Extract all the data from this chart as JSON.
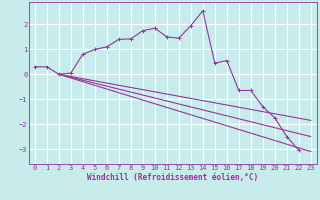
{
  "xlabel": "Windchill (Refroidissement éolien,°C)",
  "background_color": "#c8ecec",
  "line_color": "#993399",
  "grid_color": "#ffffff",
  "xlim": [
    -0.5,
    23.5
  ],
  "ylim": [
    -3.6,
    2.9
  ],
  "xticks": [
    0,
    1,
    2,
    3,
    4,
    5,
    6,
    7,
    8,
    9,
    10,
    11,
    12,
    13,
    14,
    15,
    16,
    17,
    18,
    19,
    20,
    21,
    22,
    23
  ],
  "yticks": [
    -3,
    -2,
    -1,
    0,
    1,
    2
  ],
  "x_main": [
    0,
    1,
    2,
    3,
    4,
    5,
    6,
    7,
    8,
    9,
    10,
    11,
    12,
    13,
    14,
    15,
    16,
    17,
    18,
    19,
    20,
    21,
    22
  ],
  "y_main": [
    0.3,
    0.3,
    0.0,
    0.05,
    0.8,
    1.0,
    1.1,
    1.4,
    1.42,
    1.75,
    1.85,
    1.5,
    1.45,
    1.95,
    2.55,
    0.45,
    0.55,
    -0.65,
    -0.65,
    -1.3,
    -1.75,
    -2.5,
    -3.05
  ],
  "fan_lines": [
    {
      "x": [
        2,
        23
      ],
      "y": [
        0.0,
        -3.1
      ]
    },
    {
      "x": [
        2,
        23
      ],
      "y": [
        0.0,
        -2.5
      ]
    },
    {
      "x": [
        2,
        23
      ],
      "y": [
        0.0,
        -1.85
      ]
    }
  ],
  "tick_fontsize": 5.0,
  "xlabel_fontsize": 5.5
}
